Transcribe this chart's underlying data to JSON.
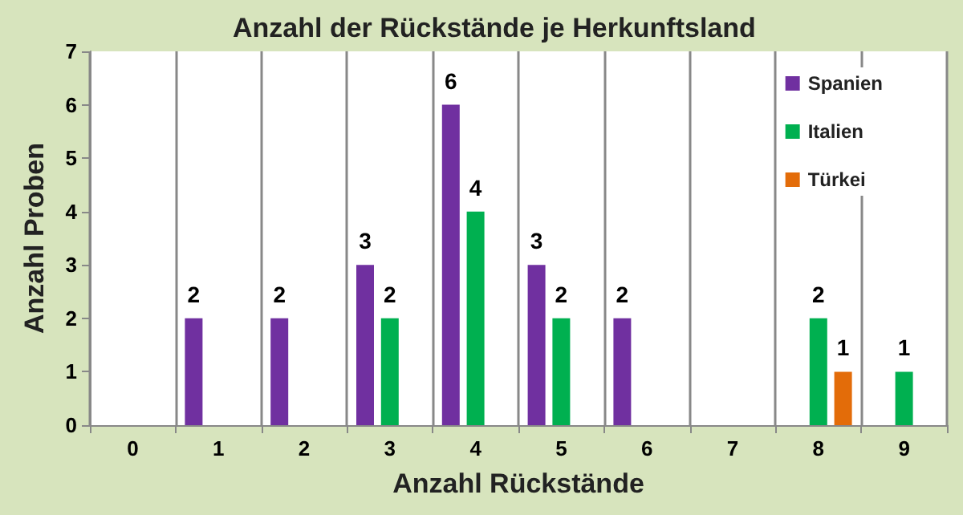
{
  "chart_data": {
    "type": "bar",
    "title": "Anzahl der Rückstände je Herkunftsland",
    "xlabel": "Anzahl Rückstände",
    "ylabel": "Anzahl Proben",
    "categories": [
      "0",
      "1",
      "2",
      "3",
      "4",
      "5",
      "6",
      "7",
      "8",
      "9"
    ],
    "series": [
      {
        "name": "Spanien",
        "color": "#7030a0",
        "values": [
          null,
          2,
          2,
          3,
          6,
          3,
          2,
          null,
          null,
          null
        ]
      },
      {
        "name": "Italien",
        "color": "#00b050",
        "values": [
          null,
          null,
          null,
          2,
          4,
          2,
          null,
          null,
          2,
          1
        ]
      },
      {
        "name": "Türkei",
        "color": "#e36c09",
        "values": [
          null,
          null,
          null,
          null,
          null,
          null,
          null,
          null,
          1,
          null
        ]
      }
    ],
    "ylim": [
      0,
      7
    ],
    "yticks": [
      0,
      1,
      2,
      3,
      4,
      5,
      6,
      7
    ],
    "grid": "x",
    "legend": "top right",
    "data_labels": true
  }
}
